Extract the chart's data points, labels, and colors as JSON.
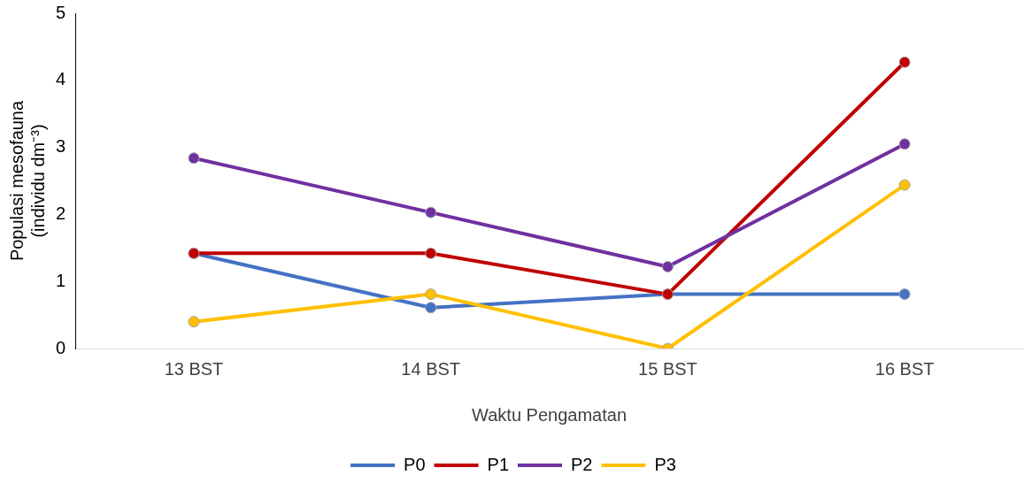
{
  "chart_data": {
    "type": "line",
    "xlabel": "Waktu Pengamatan",
    "ylabel": "Populasi mesofauna\n(individu dm⁻³)",
    "categories": [
      "13 BST",
      "14 BST",
      "15 BST",
      "16 BST"
    ],
    "series": [
      {
        "name": "P0",
        "color": "#4472c4",
        "values": [
          1.42,
          0.61,
          0.81,
          0.81
        ]
      },
      {
        "name": "P1",
        "color": "#c00000",
        "values": [
          1.42,
          1.42,
          0.81,
          4.27
        ]
      },
      {
        "name": "P2",
        "color": "#7030a0",
        "values": [
          2.84,
          2.03,
          1.22,
          3.05
        ]
      },
      {
        "name": "P3",
        "color": "#ffc000",
        "values": [
          0.4,
          0.81,
          0,
          2.44
        ]
      }
    ],
    "ylim": [
      0,
      5
    ],
    "yticks": [
      0,
      1,
      2,
      3,
      4,
      5
    ],
    "grid": false,
    "legend": "bottom",
    "marker": "circle",
    "line_style": "solid"
  }
}
